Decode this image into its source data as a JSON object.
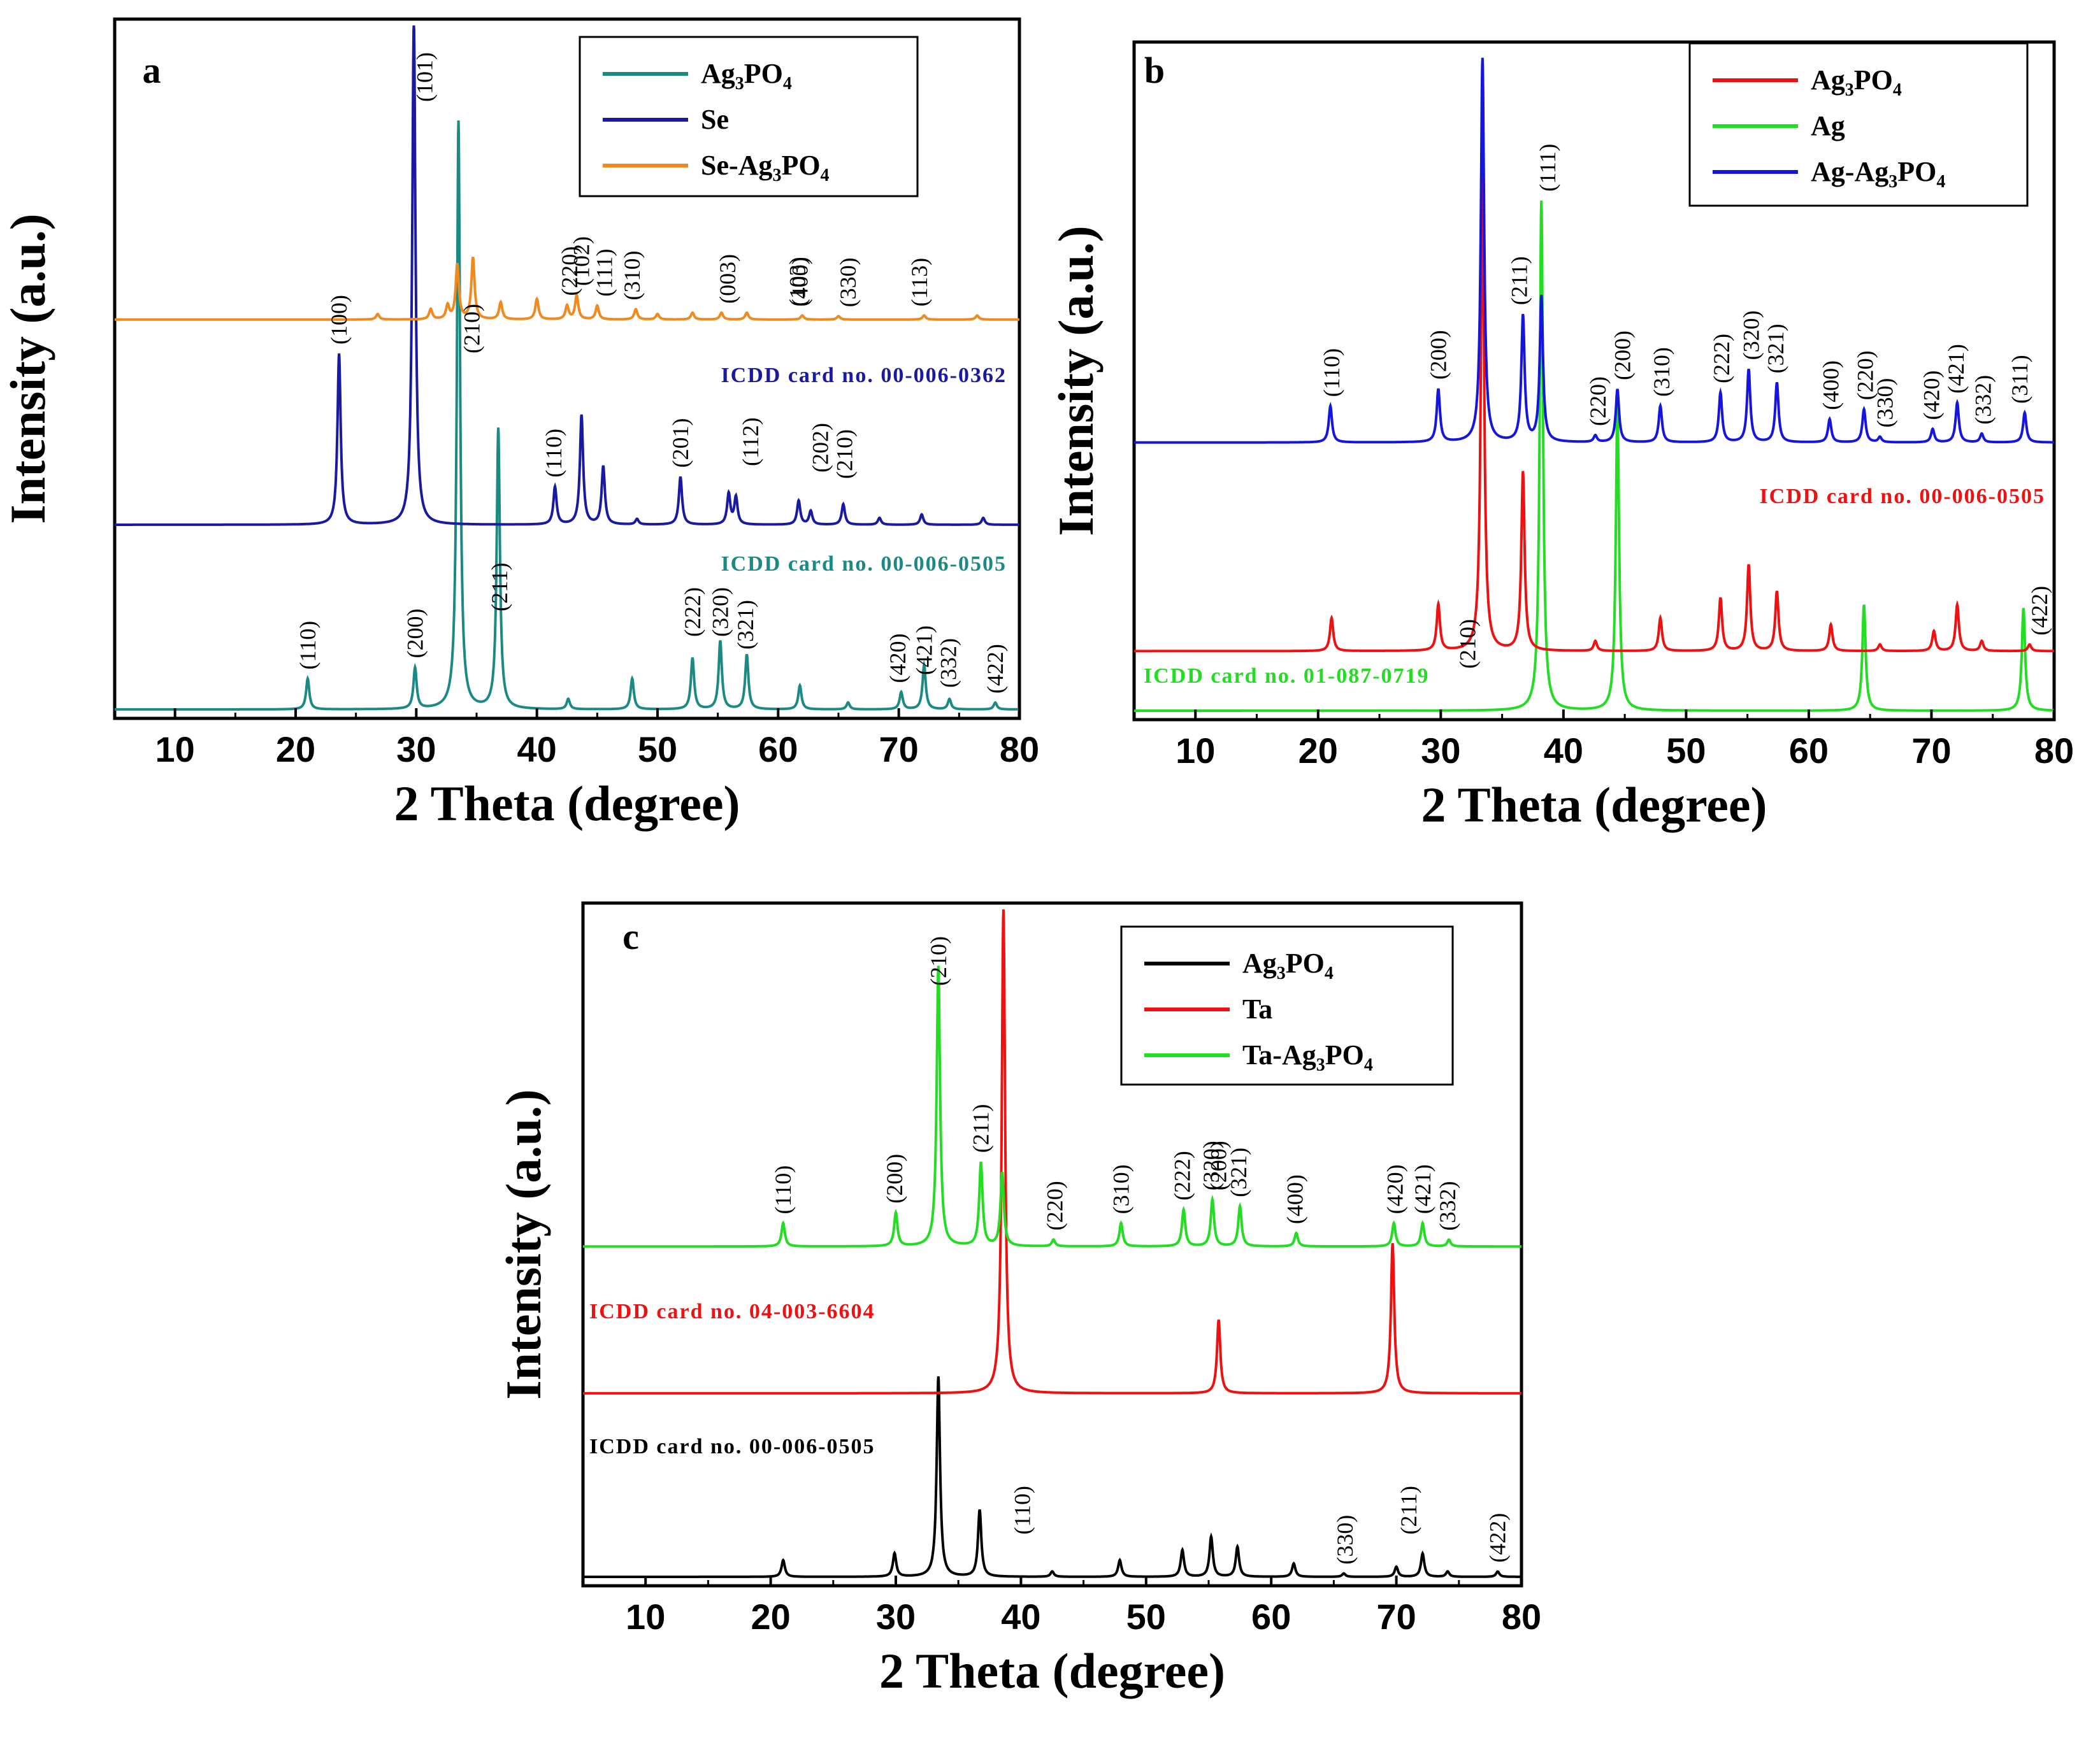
{
  "figure": {
    "panels": [
      "a",
      "b",
      "c"
    ]
  },
  "chart_data": [
    {
      "panel": "a",
      "type": "line",
      "xlabel": "2 Theta (degree)",
      "ylabel": "Intensity (a.u.)",
      "xlim": [
        5,
        80
      ],
      "xticks": [
        10,
        20,
        30,
        40,
        50,
        60,
        70,
        80
      ],
      "ylim": [
        0,
        100
      ],
      "legend_position": "top-right",
      "series": [
        {
          "name": "Ag3PO4",
          "label_main": "Ag",
          "label_sub1": "3",
          "label_mid": "PO",
          "label_sub2": "4",
          "label_pre": "",
          "color": "#1b8a84",
          "baseline": 0,
          "peaks": [
            [
              21.0,
              4.5
            ],
            [
              29.9,
              6
            ],
            [
              33.5,
              86
            ],
            [
              36.8,
              41
            ],
            [
              42.6,
              1.5
            ],
            [
              47.9,
              4.5
            ],
            [
              52.9,
              7.5
            ],
            [
              55.2,
              10
            ],
            [
              57.4,
              8
            ],
            [
              61.8,
              3.5
            ],
            [
              65.8,
              1
            ],
            [
              70.2,
              2.5
            ],
            [
              72.1,
              6.5
            ],
            [
              74.2,
              1.5
            ],
            [
              78.0,
              1
            ]
          ]
        },
        {
          "name": "Se",
          "label_main": "Se",
          "label_sub1": "",
          "label_mid": "",
          "label_sub2": "",
          "label_pre": "",
          "color": "#1a1aa0",
          "baseline": 27,
          "peaks": [
            [
              23.6,
              25
            ],
            [
              29.8,
              74
            ],
            [
              41.5,
              5.5
            ],
            [
              43.7,
              16
            ],
            [
              45.5,
              8.5
            ],
            [
              48.3,
              0.8
            ],
            [
              51.9,
              7
            ],
            [
              55.9,
              4.5
            ],
            [
              56.5,
              4
            ],
            [
              61.7,
              3.5
            ],
            [
              62.7,
              2
            ],
            [
              65.4,
              3
            ],
            [
              68.4,
              1
            ],
            [
              71.9,
              1.5
            ],
            [
              77.0,
              1
            ]
          ]
        },
        {
          "name": "Se-Ag3PO4",
          "label_main": "Ag",
          "label_sub1": "3",
          "label_mid": "PO",
          "label_sub2": "4",
          "label_pre": "Se-",
          "color": "#f08a1e",
          "baseline": 57,
          "peaks": [
            [
              26.8,
              0.8
            ],
            [
              31.2,
              1.5
            ],
            [
              32.6,
              2
            ],
            [
              33.4,
              8
            ],
            [
              34.7,
              9
            ],
            [
              37.0,
              2.5
            ],
            [
              40.0,
              3
            ],
            [
              42.5,
              2
            ],
            [
              43.3,
              3.5
            ],
            [
              45.0,
              2
            ],
            [
              48.2,
              1.5
            ],
            [
              50.0,
              0.8
            ],
            [
              52.9,
              1
            ],
            [
              55.3,
              1
            ],
            [
              57.4,
              1
            ],
            [
              62.0,
              0.6
            ],
            [
              65.0,
              0.5
            ],
            [
              72.1,
              0.6
            ],
            [
              76.5,
              0.6
            ]
          ]
        }
      ],
      "annotations": [
        {
          "text": "(100)",
          "x": 23.6
        },
        {
          "text": "(101)",
          "x": 30.7
        },
        {
          "text": "(110)",
          "x": 41.4
        },
        {
          "text": "(102)",
          "x": 43.7
        },
        {
          "text": "(111)",
          "x": 45.6
        },
        {
          "text": "(201)",
          "x": 51.9
        },
        {
          "text": "(003)",
          "x": 55.8
        },
        {
          "text": "(112)",
          "x": 57.7
        },
        {
          "text": "(103)",
          "x": 61.6
        },
        {
          "text": "(202)",
          "x": 63.5
        },
        {
          "text": "(210)",
          "x": 65.5
        },
        {
          "text": "(113)",
          "x": 71.7
        },
        {
          "text": "(210)",
          "x": 34.6
        },
        {
          "text": "(110)",
          "x": 21.0
        },
        {
          "text": "(200)",
          "x": 29.9
        },
        {
          "text": "(211)",
          "x": 36.9
        },
        {
          "text": "(220)",
          "x": 42.7
        },
        {
          "text": "(310)",
          "x": 47.9
        },
        {
          "text": "(222)",
          "x": 52.9
        },
        {
          "text": "(320)",
          "x": 55.2
        },
        {
          "text": "(321)",
          "x": 57.3
        },
        {
          "text": "(400)",
          "x": 61.8
        },
        {
          "text": "(330)",
          "x": 65.8
        },
        {
          "text": "(420)",
          "x": 69.9
        },
        {
          "text": "(421)",
          "x": 72.1
        },
        {
          "text": "(332)",
          "x": 74.1
        },
        {
          "text": "(422)",
          "x": 78.0
        }
      ],
      "cards": [
        {
          "text": "ICDD card no. 00-006-0362",
          "color": "#1a1aa0"
        },
        {
          "text": "ICDD card no. 00-006-0505",
          "color": "#1b8a84"
        }
      ]
    },
    {
      "panel": "b",
      "type": "line",
      "xlabel": "2 Theta (degree)",
      "ylabel": "Intensity (a.u.)",
      "xlim": [
        5,
        80
      ],
      "xticks": [
        10,
        20,
        30,
        40,
        50,
        60,
        70,
        80
      ],
      "ylim": [
        0,
        100
      ],
      "legend_position": "top-right",
      "series": [
        {
          "name": "Ag",
          "label_main": "Ag",
          "label_sub1": "",
          "label_mid": "",
          "label_sub2": "",
          "label_pre": "",
          "color": "#22dd22",
          "baseline": 0,
          "peaks": [
            [
              38.2,
              77
            ],
            [
              44.4,
              46
            ],
            [
              64.5,
              16
            ],
            [
              77.5,
              15.5
            ]
          ]
        },
        {
          "name": "Ag3PO4",
          "label_main": "Ag",
          "label_sub1": "3",
          "label_mid": "PO",
          "label_sub2": "4",
          "label_pre": "",
          "color": "#ee1111",
          "baseline": 9,
          "peaks": [
            [
              21.1,
              5
            ],
            [
              29.8,
              7
            ],
            [
              33.4,
              73
            ],
            [
              36.7,
              27
            ],
            [
              42.6,
              1.5
            ],
            [
              47.9,
              5
            ],
            [
              52.8,
              8
            ],
            [
              55.1,
              13
            ],
            [
              57.4,
              9
            ],
            [
              61.8,
              4
            ],
            [
              65.8,
              1
            ],
            [
              70.2,
              3
            ],
            [
              72.1,
              7
            ],
            [
              74.1,
              1.5
            ],
            [
              78.0,
              1
            ]
          ]
        },
        {
          "name": "Ag-Ag3PO4",
          "label_main": "Ag",
          "label_sub1": "3",
          "label_mid": "PO",
          "label_sub2": "4",
          "label_pre": "Ag-",
          "color": "#1515dd",
          "baseline": 40.5,
          "peaks": [
            [
              21.0,
              5.5
            ],
            [
              29.8,
              8
            ],
            [
              33.4,
              58
            ],
            [
              36.7,
              19
            ],
            [
              38.2,
              22
            ],
            [
              42.6,
              1
            ],
            [
              44.4,
              8
            ],
            [
              47.9,
              5.5
            ],
            [
              52.8,
              7.5
            ],
            [
              55.1,
              11
            ],
            [
              57.4,
              9
            ],
            [
              61.7,
              3.5
            ],
            [
              64.5,
              5
            ],
            [
              65.8,
              0.8
            ],
            [
              70.1,
              2
            ],
            [
              72.1,
              6
            ],
            [
              74.1,
              1.3
            ],
            [
              77.6,
              4.5
            ]
          ]
        }
      ],
      "annotations": [
        {
          "text": "(111)",
          "x": 38.7
        },
        {
          "text": "(210)",
          "x": 32.2
        },
        {
          "text": "(211)",
          "x": 36.4
        },
        {
          "text": "(200)",
          "x": 44.8
        },
        {
          "text": "(110)",
          "x": 21.1
        },
        {
          "text": "(200)",
          "x": 29.8
        },
        {
          "text": "(220)",
          "x": 42.8
        },
        {
          "text": "(310)",
          "x": 48.0
        },
        {
          "text": "(222)",
          "x": 52.9
        },
        {
          "text": "(320)",
          "x": 55.3
        },
        {
          "text": "(321)",
          "x": 57.3
        },
        {
          "text": "(400)",
          "x": 61.8
        },
        {
          "text": "(220)",
          "x": 64.6
        },
        {
          "text": "(330)",
          "x": 66.2
        },
        {
          "text": "(420)",
          "x": 70.0
        },
        {
          "text": "(421)",
          "x": 72.0
        },
        {
          "text": "(332)",
          "x": 74.2
        },
        {
          "text": "(311)",
          "x": 77.2
        },
        {
          "text": "(422)",
          "x": 78.8
        }
      ],
      "cards": [
        {
          "text": "ICDD card no. 00-006-0505",
          "color": "#ee1111"
        },
        {
          "text": "ICDD card no. 01-087-0719",
          "color": "#22dd22"
        }
      ]
    },
    {
      "panel": "c",
      "type": "line",
      "xlabel": "2 Theta (degree)",
      "ylabel": "Intensity (a.u.)",
      "xlim": [
        5,
        80
      ],
      "xticks": [
        10,
        20,
        30,
        40,
        50,
        60,
        70,
        80
      ],
      "ylim": [
        0,
        100
      ],
      "legend_position": "top-right",
      "series": [
        {
          "name": "Ag3PO4",
          "label_main": "Ag",
          "label_sub1": "3",
          "label_mid": "PO",
          "label_sub2": "4",
          "label_pre": "",
          "color": "#000000",
          "baseline": 0,
          "peaks": [
            [
              21.0,
              2.5
            ],
            [
              29.9,
              3.5
            ],
            [
              33.4,
              30
            ],
            [
              36.7,
              10
            ],
            [
              42.5,
              0.8
            ],
            [
              47.9,
              2.5
            ],
            [
              52.9,
              4
            ],
            [
              55.2,
              6
            ],
            [
              57.3,
              4.5
            ],
            [
              61.8,
              2
            ],
            [
              65.8,
              0.5
            ],
            [
              70.0,
              1.5
            ],
            [
              72.1,
              3.5
            ],
            [
              74.1,
              0.8
            ],
            [
              78.1,
              0.8
            ]
          ]
        },
        {
          "name": "Ta",
          "label_main": "Ta",
          "label_sub1": "",
          "label_mid": "",
          "label_sub2": "",
          "label_pre": "",
          "color": "#ee1111",
          "baseline": 27.5,
          "peaks": [
            [
              38.6,
              72.5
            ],
            [
              55.8,
              11
            ],
            [
              69.7,
              22.5
            ]
          ]
        },
        {
          "name": "Ta-Ag3PO4",
          "label_main": "Ag",
          "label_sub1": "3",
          "label_mid": "PO",
          "label_sub2": "4",
          "label_pre": "Ta-",
          "color": "#22dd22",
          "baseline": 49.5,
          "peaks": [
            [
              21.0,
              3.5
            ],
            [
              30.0,
              5
            ],
            [
              33.4,
              42
            ],
            [
              36.8,
              12.5
            ],
            [
              38.5,
              11
            ],
            [
              42.6,
              1
            ],
            [
              48.0,
              3.5
            ],
            [
              53.0,
              5.5
            ],
            [
              55.3,
              7
            ],
            [
              57.5,
              6
            ],
            [
              62.0,
              2
            ],
            [
              69.8,
              3.5
            ],
            [
              72.1,
              3.5
            ],
            [
              74.2,
              1
            ]
          ]
        }
      ],
      "annotations": [
        {
          "text": "(110)",
          "x": 40.1
        },
        {
          "text": "(200)",
          "x": 55.8
        },
        {
          "text": "(211)",
          "x": 71.0
        },
        {
          "text": "(210)",
          "x": 33.4
        },
        {
          "text": "(110)",
          "x": 21.0
        },
        {
          "text": "(200)",
          "x": 29.9
        },
        {
          "text": "(211)",
          "x": 36.8
        },
        {
          "text": "(220)",
          "x": 42.7
        },
        {
          "text": "(310)",
          "x": 48.0
        },
        {
          "text": "(222)",
          "x": 52.9
        },
        {
          "text": "(320)",
          "x": 55.2
        },
        {
          "text": "(321)",
          "x": 57.4
        },
        {
          "text": "(400)",
          "x": 61.9
        },
        {
          "text": "(330)",
          "x": 65.9
        },
        {
          "text": "(420)",
          "x": 69.9
        },
        {
          "text": "(421)",
          "x": 72.1
        },
        {
          "text": "(332)",
          "x": 74.1
        },
        {
          "text": "(422)",
          "x": 78.1
        }
      ],
      "cards": [
        {
          "text": "ICDD card no. 04-003-6604",
          "color": "#ee1111"
        },
        {
          "text": "ICDD card no. 00-006-0505",
          "color": "#000000"
        }
      ]
    }
  ]
}
